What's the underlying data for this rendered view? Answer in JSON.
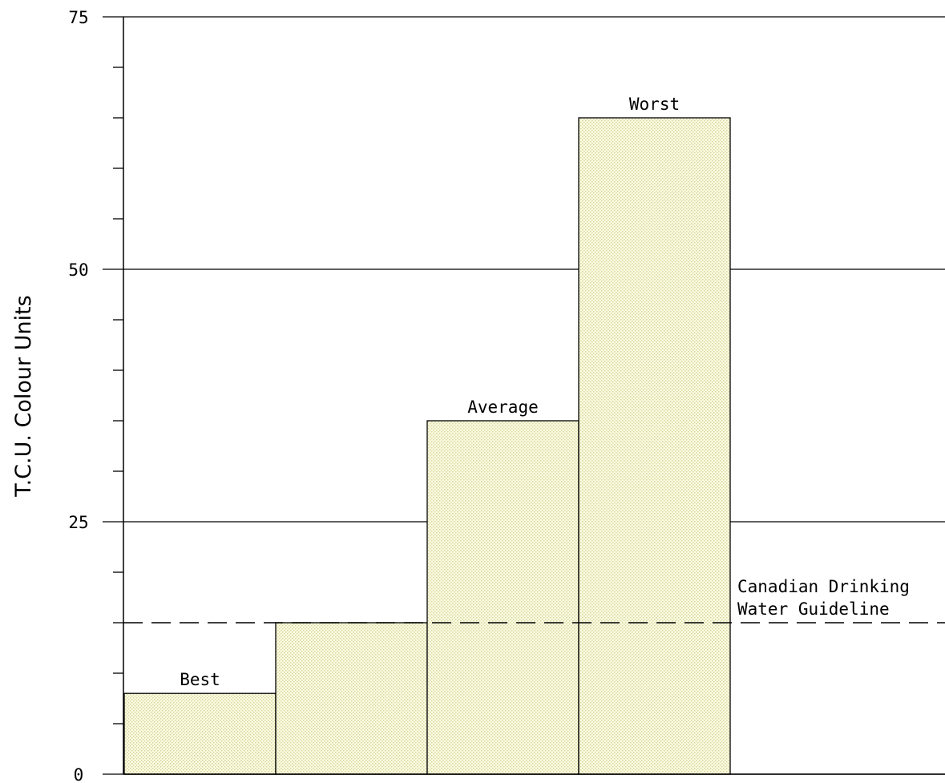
{
  "chart_data": {
    "type": "bar",
    "ylabel": "T.C.U. Colour Units",
    "xlabel": "",
    "ylim": [
      0,
      75
    ],
    "yticks": [
      0,
      25,
      50,
      75
    ],
    "grid": true,
    "bars": [
      {
        "label": "Best",
        "value": 8
      },
      {
        "label": "",
        "value": 15
      },
      {
        "label": "Average",
        "value": 35
      },
      {
        "label": "Worst",
        "value": 65
      }
    ],
    "reference_line": {
      "value": 15,
      "label_lines": [
        "Canadian Drinking",
        "Water Guideline"
      ]
    },
    "colors": {
      "bar_fill": "#fbfbe4",
      "bar_dots": "#d6d699",
      "bar_stroke": "#000000",
      "axis": "#000000"
    }
  }
}
